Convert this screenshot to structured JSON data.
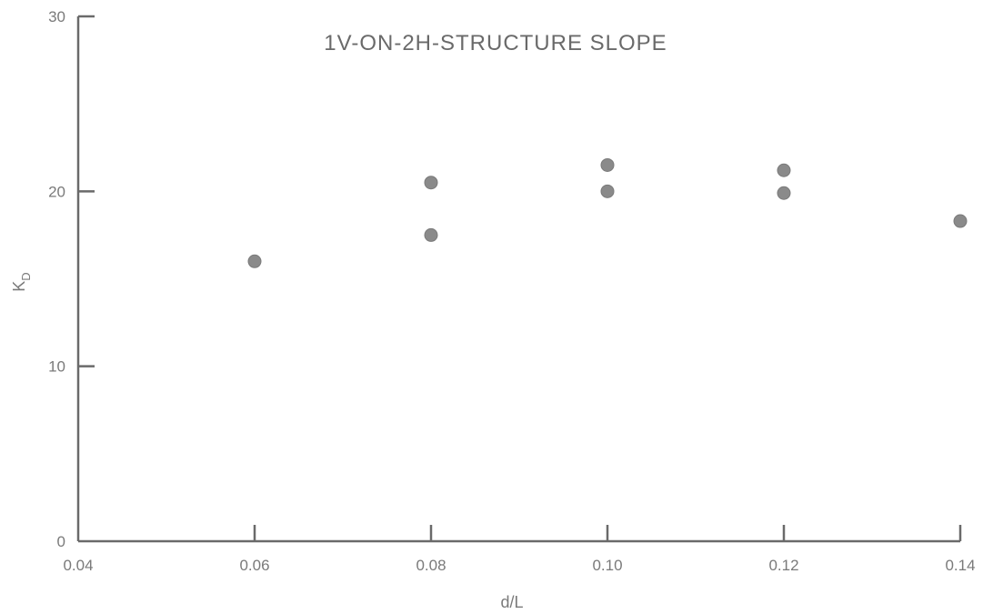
{
  "chart_data": {
    "type": "scatter",
    "title": "1V-ON-2H-STRUCTURE SLOPE",
    "xlabel": "d/L",
    "ylabel_main": "K",
    "ylabel_sub": "D",
    "xlim": [
      0.04,
      0.14
    ],
    "ylim": [
      0,
      30
    ],
    "x_ticks": [
      0.04,
      0.06,
      0.08,
      0.1,
      0.12,
      0.14
    ],
    "x_tick_labels": [
      "0.04",
      "0.06",
      "0.08",
      "0.10",
      "0.12",
      "0.14"
    ],
    "y_ticks": [
      0,
      10,
      20,
      30
    ],
    "y_tick_labels": [
      "0",
      "10",
      "20",
      "30"
    ],
    "grid": false,
    "points": [
      {
        "x": 0.06,
        "y": 16.0
      },
      {
        "x": 0.08,
        "y": 20.5
      },
      {
        "x": 0.08,
        "y": 17.5
      },
      {
        "x": 0.1,
        "y": 21.5
      },
      {
        "x": 0.1,
        "y": 20.0
      },
      {
        "x": 0.12,
        "y": 21.2
      },
      {
        "x": 0.12,
        "y": 19.9
      },
      {
        "x": 0.14,
        "y": 18.3
      }
    ],
    "marker_color": "#8a8a8a"
  }
}
